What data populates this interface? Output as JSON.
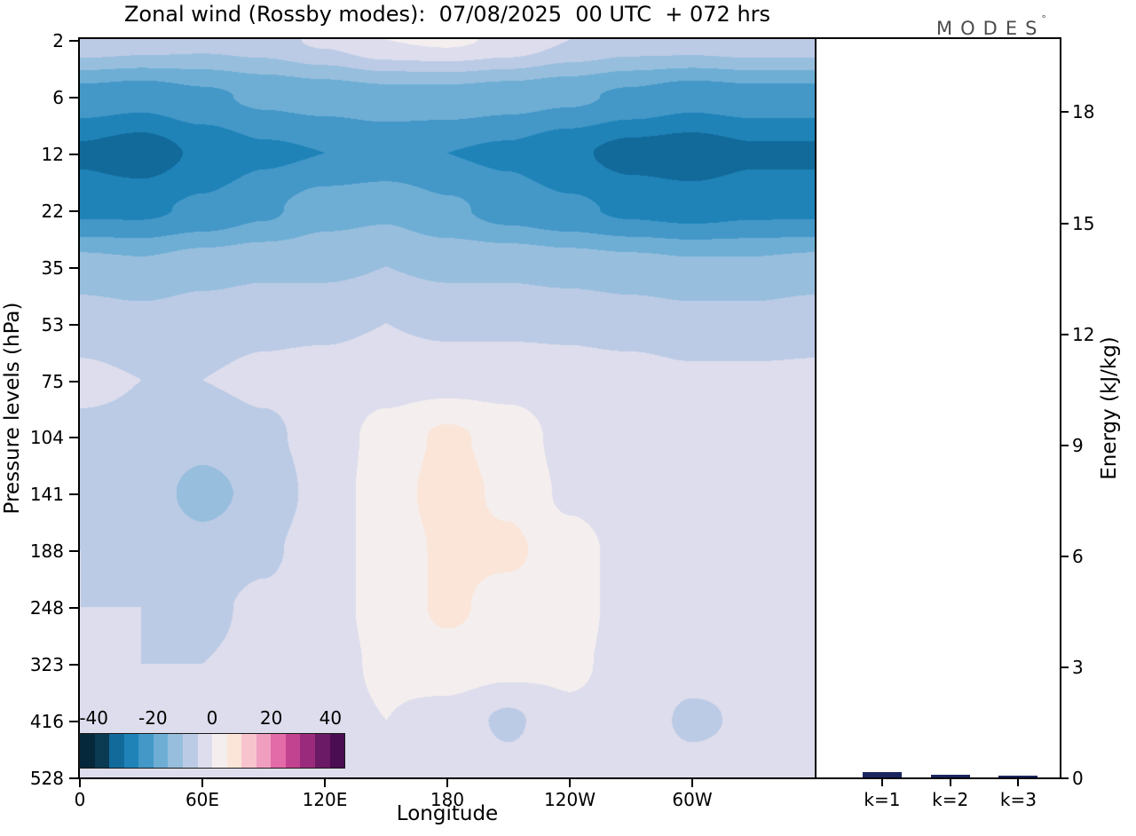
{
  "title": "Zonal wind (Rossby modes):  07/08/2025  00 UTC  + 072 hrs",
  "logo": {
    "text": "MODES",
    "degree": "°"
  },
  "chart_data": [
    {
      "type": "heatmap",
      "name": "zonal-wind-rossby-cross-section",
      "xlabel": "Longitude",
      "ylabel": "Pressure levels (hPa)",
      "x_range_deg": [
        0,
        360
      ],
      "x_ticks": [
        {
          "value": 0,
          "label": "0"
        },
        {
          "value": 60,
          "label": "60E"
        },
        {
          "value": 120,
          "label": "120E"
        },
        {
          "value": 180,
          "label": "180"
        },
        {
          "value": 240,
          "label": "120W"
        },
        {
          "value": 300,
          "label": "60W"
        }
      ],
      "x_deg": [
        0,
        30,
        60,
        90,
        120,
        150,
        180,
        210,
        240,
        270,
        300,
        330,
        360
      ],
      "y_pressure_hPa": [
        2,
        6,
        12,
        22,
        35,
        53,
        75,
        104,
        141,
        188,
        248,
        323,
        416,
        528
      ],
      "values_zonal_wind": [
        [
          -6,
          -7,
          -8,
          -7,
          -4,
          0,
          1,
          -1,
          -5,
          -7,
          -7,
          -6,
          -6
        ],
        [
          -22,
          -23,
          -21,
          -19,
          -18,
          -17,
          -17,
          -18,
          -19,
          -21,
          -23,
          -22,
          -22
        ],
        [
          -31,
          -33,
          -29,
          -26,
          -25,
          -24,
          -25,
          -26,
          -29,
          -32,
          -33,
          -31,
          -31
        ],
        [
          -26,
          -26,
          -24,
          -21,
          -17,
          -16,
          -19,
          -22,
          -24,
          -26,
          -27,
          -26,
          -26
        ],
        [
          -13,
          -14,
          -12,
          -11,
          -11,
          -10,
          -11,
          -11,
          -12,
          -13,
          -14,
          -14,
          -13
        ],
        [
          -7,
          -8,
          -7,
          -6,
          -6,
          -5,
          -6,
          -6,
          -6,
          -7,
          -8,
          -8,
          -7
        ],
        [
          -4,
          -5,
          -5,
          -4,
          -3,
          -2,
          -2,
          -2,
          -3,
          -3,
          -4,
          -4,
          -4
        ],
        [
          -6,
          -6,
          -8,
          -6,
          -3,
          2,
          6,
          3,
          -2,
          -3,
          -4,
          -5,
          -5
        ],
        [
          -6,
          -7,
          -12,
          -8,
          -3,
          3,
          7,
          4,
          -1,
          -3,
          -4,
          -5,
          -5
        ],
        [
          -5,
          -6,
          -8,
          -6,
          -2,
          2,
          6,
          6,
          2,
          -2,
          -4,
          -4,
          -4
        ],
        [
          -5,
          -5,
          -6,
          -4,
          -2,
          2,
          6,
          3,
          2,
          -2,
          -4,
          -4,
          -4
        ],
        [
          -4,
          -5,
          -5,
          -4,
          -2,
          1,
          3,
          2,
          1,
          -2,
          -3,
          -4,
          -4
        ],
        [
          -3,
          -4,
          -4,
          -3,
          -2,
          0,
          -2,
          -6,
          -1,
          -2,
          -6,
          -4,
          -3
        ],
        [
          -3,
          -3,
          -4,
          -3,
          -2,
          -1,
          -1,
          -3,
          -2,
          -2,
          -3,
          -3,
          -3
        ]
      ],
      "colorbar": {
        "levels": [
          -45,
          -40,
          -35,
          -30,
          -25,
          -20,
          -15,
          -10,
          -5,
          0,
          5,
          10,
          15,
          20,
          25,
          30,
          35,
          40,
          45
        ],
        "colors": [
          "#06283b",
          "#0a3b52",
          "#126a9b",
          "#1f83b8",
          "#4398c8",
          "#6faed4",
          "#97bedd",
          "#bccbe5",
          "#dddded",
          "#f4efee",
          "#fbe5d8",
          "#f7c4ce",
          "#f09ec0",
          "#e26ba8",
          "#c2438f",
          "#9a2b7c",
          "#6b1a66",
          "#4a0d52"
        ],
        "tick_values": [
          -40,
          -20,
          0,
          20,
          40
        ],
        "tick_labels": [
          "-40",
          "-20",
          "0",
          "20",
          "40"
        ]
      }
    },
    {
      "type": "bar",
      "name": "rossby-mode-energy",
      "ylabel": "Energy (kJ/kg)",
      "categories": [
        "k=1",
        "k=2",
        "k=3"
      ],
      "values": [
        0.14,
        0.07,
        0.04
      ],
      "y_ticks": [
        0,
        3,
        6,
        9,
        12,
        15,
        18
      ],
      "ylim": [
        0,
        20
      ],
      "bar_color": "#1b2660",
      "legend": "none",
      "grid": "off"
    }
  ]
}
